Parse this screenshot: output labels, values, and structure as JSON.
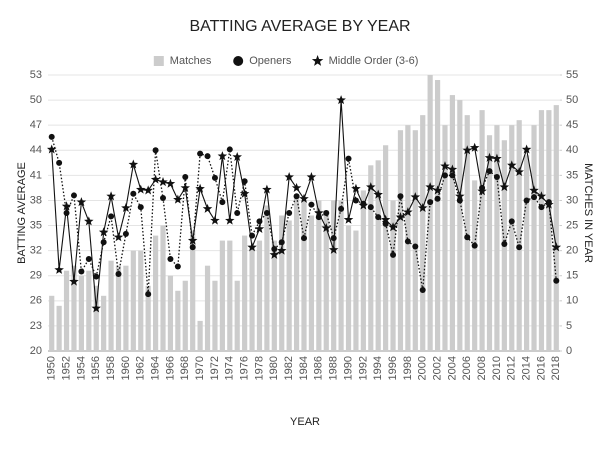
{
  "chart_data": {
    "type": "combo",
    "title": "BATTING AVERAGE BY YEAR",
    "x_label": "YEAR",
    "y_label": "BATTING AVERAGE",
    "y2_label": "MATCHES IN YEAR",
    "categories": [
      "1950",
      null,
      "1952",
      null,
      "1954",
      null,
      "1956",
      null,
      "1958",
      null,
      "1960",
      null,
      "1962",
      null,
      "1964",
      null,
      "1966",
      null,
      "1968",
      null,
      "1970",
      null,
      "1972",
      null,
      "1974",
      null,
      "1976",
      null,
      "1978",
      null,
      "1980",
      null,
      "1982",
      null,
      "1984",
      null,
      "1986",
      null,
      "1988",
      null,
      "1990",
      null,
      "1992",
      null,
      "1994",
      null,
      "1996",
      null,
      "1998",
      null,
      "2000",
      null,
      "2002",
      null,
      "2004",
      null,
      "2006",
      null,
      "2008",
      null,
      "2010",
      null,
      "2012",
      null,
      "2014",
      null,
      "2016",
      null,
      "2018"
    ],
    "ylim": [
      20,
      53
    ],
    "yticks": [
      20,
      23,
      26,
      29,
      32,
      35,
      38,
      41,
      44,
      47,
      50,
      53
    ],
    "y2lim": [
      0,
      55
    ],
    "y2ticks": [
      0,
      5,
      10,
      15,
      20,
      25,
      30,
      35,
      40,
      45,
      50,
      55
    ],
    "grid": true,
    "legend": "top",
    "series": [
      {
        "name": "Matches",
        "color": "#cccccc",
        "axis": "y2",
        "mark": "bar",
        "values": [
          11,
          9,
          16,
          17,
          15,
          16,
          13,
          11,
          18,
          17,
          17,
          20,
          20,
          13,
          23,
          25,
          15,
          12,
          14,
          24,
          6,
          17,
          14,
          22,
          22,
          14,
          23,
          21,
          22,
          29,
          22,
          27,
          26,
          31,
          30,
          27,
          30,
          28,
          30,
          30,
          25,
          24,
          32,
          37,
          38,
          41,
          30,
          44,
          45,
          44,
          47,
          55,
          54,
          45,
          51,
          50,
          47,
          34,
          48,
          43,
          45,
          42,
          45,
          46,
          39,
          45,
          48,
          48,
          49
        ]
      },
      {
        "name": "Openers",
        "color": "#111111",
        "axis": "y",
        "mark": "circle",
        "line_style": "dotted",
        "values": [
          45.6,
          42.5,
          36.5,
          38.6,
          29.5,
          31,
          28.9,
          33,
          36.1,
          29.2,
          34,
          38.8,
          37.2,
          26.8,
          44,
          38.3,
          31,
          30.1,
          40.8,
          32.4,
          43.6,
          43.3,
          40.7,
          37.8,
          44.1,
          36.5,
          40.3,
          33.8,
          35.5,
          36.5,
          32.2,
          33,
          36.5,
          38.5,
          33.5,
          37.5,
          36,
          36.5,
          33.5,
          37,
          43,
          38,
          37.6,
          37.2,
          36,
          35.2,
          31.5,
          38.5,
          33.1,
          32.5,
          27.3,
          37.8,
          38.2,
          41,
          41,
          38,
          33.6,
          32.6,
          39.5,
          41.5,
          40.8,
          32.8,
          35.5,
          32.4,
          38,
          38.4,
          37.2,
          37.8,
          28.4
        ]
      },
      {
        "name": "Middle Order (3-6)",
        "color": "#111111",
        "axis": "y",
        "mark": "star",
        "line_style": "solid",
        "values": [
          44.1,
          29.7,
          37.3,
          28.3,
          37.8,
          35.5,
          25.1,
          34.2,
          38.5,
          33.6,
          37.1,
          42.3,
          39.3,
          39.2,
          40.5,
          40.2,
          40,
          38.1,
          39.5,
          33.2,
          39.4,
          37,
          35.6,
          43.3,
          35.6,
          43.2,
          38.8,
          32.4,
          34.6,
          39.3,
          31.5,
          32,
          40.8,
          39.5,
          38.2,
          40.8,
          36.5,
          34.7,
          32.1,
          50,
          35.7,
          39.4,
          37.4,
          39.6,
          38.7,
          35.7,
          34.8,
          36,
          36.6,
          38.4,
          37.1,
          39.6,
          39.2,
          42.1,
          41.7,
          38.5,
          44,
          44.3,
          39.1,
          43.1,
          43,
          39.6,
          42.2,
          41.4,
          44.1,
          39.2,
          38.5,
          37.5,
          32.4
        ]
      }
    ]
  }
}
